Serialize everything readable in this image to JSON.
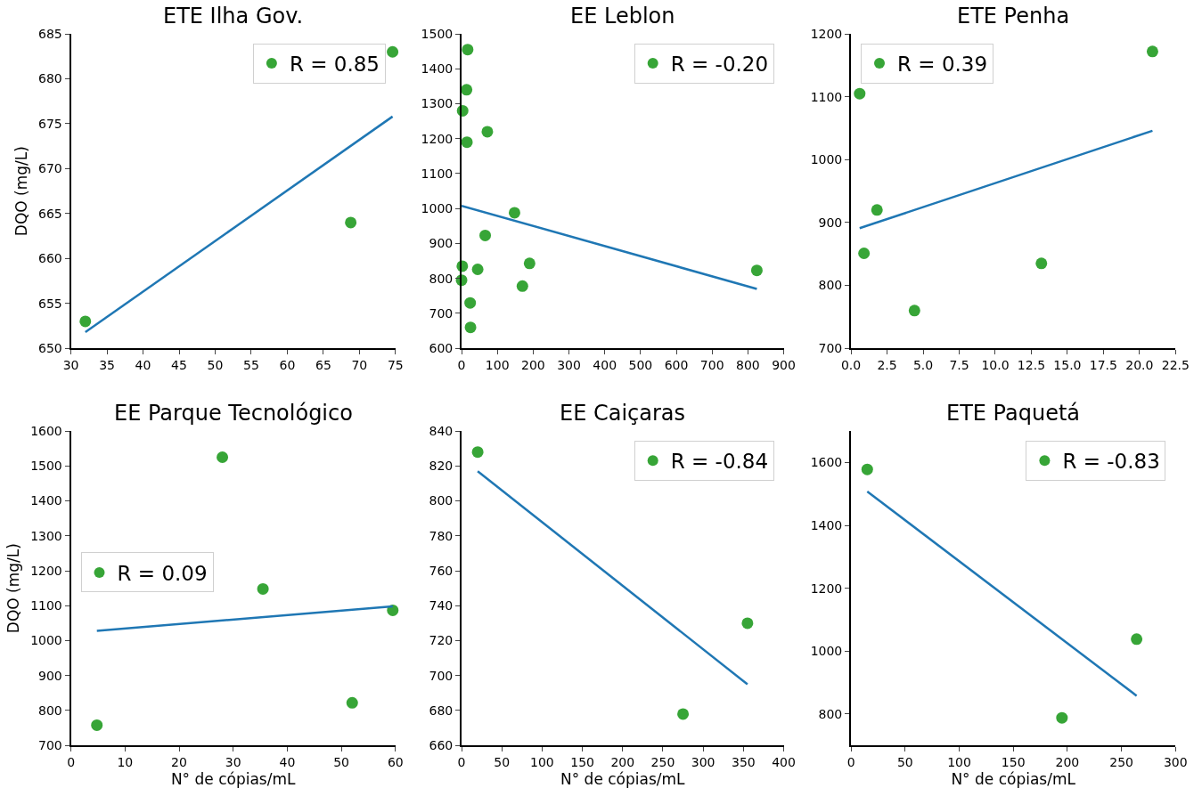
{
  "chart_data": [
    {
      "type": "scatter",
      "title": "ETE Ilha Gov.",
      "ylabel": "DQO (mg/L)",
      "xlim": [
        30,
        75
      ],
      "xticks": [
        30,
        35,
        40,
        45,
        50,
        55,
        60,
        65,
        70,
        75
      ],
      "ylim": [
        650,
        685
      ],
      "yticks": [
        650,
        655,
        660,
        665,
        670,
        675,
        680,
        685
      ],
      "grid": false,
      "legend": "top right",
      "series": [
        {
          "name": "R = 0.85",
          "color": "#2ca02c",
          "marker": "circle",
          "x": [
            32,
            68.8,
            74.6
          ],
          "values": [
            653,
            664,
            683
          ]
        },
        {
          "type": "line",
          "color": "#1f77b4",
          "marker": "none",
          "x": [
            32,
            74.6
          ],
          "values": [
            651.8,
            675.8
          ]
        }
      ]
    },
    {
      "type": "scatter",
      "title": "EE Leblon",
      "xlim": [
        0,
        900
      ],
      "xticks": [
        0,
        100,
        200,
        300,
        400,
        500,
        600,
        700,
        800,
        900
      ],
      "ylim": [
        600,
        1500
      ],
      "yticks": [
        600,
        700,
        800,
        900,
        1000,
        1100,
        1200,
        1300,
        1400,
        1500
      ],
      "grid": false,
      "legend": "top right",
      "series": [
        {
          "name": "R = -0.20",
          "color": "#2ca02c",
          "marker": "circle",
          "x": [
            17,
            14,
            3,
            15,
            72,
            148,
            66,
            2,
            45,
            190,
            0,
            170,
            24,
            25,
            825
          ],
          "values": [
            1455,
            1340,
            1280,
            1190,
            1220,
            988,
            923,
            835,
            826,
            843,
            795,
            778,
            730,
            660,
            823
          ]
        },
        {
          "type": "line",
          "color": "#1f77b4",
          "marker": "none",
          "x": [
            0,
            825
          ],
          "values": [
            1008,
            770
          ]
        }
      ]
    },
    {
      "type": "scatter",
      "title": "ETE Penha",
      "xlim": [
        0,
        22.5
      ],
      "xticks": [
        {
          "value": 0,
          "label": "0.0"
        },
        {
          "value": 2.5,
          "label": "2.5"
        },
        {
          "value": 5,
          "label": "5.0"
        },
        {
          "value": 7.5,
          "label": "7.5"
        },
        {
          "value": 10,
          "label": "10.0"
        },
        {
          "value": 12.5,
          "label": "12.5"
        },
        {
          "value": 15,
          "label": "15.0"
        },
        {
          "value": 17.5,
          "label": "17.5"
        },
        {
          "value": 20,
          "label": "20.0"
        },
        {
          "value": 22.5,
          "label": "22.5"
        }
      ],
      "ylim": [
        700,
        1200
      ],
      "yticks": [
        700,
        800,
        900,
        1000,
        1100,
        1200
      ],
      "grid": false,
      "legend": "top left",
      "series": [
        {
          "name": "R = 0.39",
          "color": "#2ca02c",
          "marker": "circle",
          "x": [
            0.6,
            1.8,
            0.9,
            4.4,
            13.2,
            20.9
          ],
          "values": [
            1105,
            920,
            851,
            760,
            835,
            1172
          ]
        },
        {
          "type": "line",
          "color": "#1f77b4",
          "marker": "none",
          "x": [
            0.6,
            20.9
          ],
          "values": [
            891,
            1046
          ]
        }
      ]
    },
    {
      "type": "scatter",
      "title": "EE Parque Tecnológico",
      "xlabel": "N° de cópias/mL",
      "ylabel": "DQO (mg/L)",
      "xlim": [
        0,
        60
      ],
      "xticks": [
        0,
        10,
        20,
        30,
        40,
        50,
        60
      ],
      "ylim": [
        700,
        1600
      ],
      "yticks": [
        700,
        800,
        900,
        1000,
        1100,
        1200,
        1300,
        1400,
        1500,
        1600
      ],
      "grid": false,
      "legend": "left",
      "series": [
        {
          "name": "R = 0.09",
          "color": "#2ca02c",
          "marker": "circle",
          "x": [
            4.8,
            28,
            35.5,
            52,
            59.5
          ],
          "values": [
            758,
            1525,
            1148,
            822,
            1087
          ]
        },
        {
          "type": "line",
          "color": "#1f77b4",
          "marker": "none",
          "x": [
            4.8,
            59.5
          ],
          "values": [
            1028,
            1098
          ]
        }
      ]
    },
    {
      "type": "scatter",
      "title": "EE Caiçaras",
      "xlabel": "N° de cópias/mL",
      "xlim": [
        0,
        400
      ],
      "xticks": [
        0,
        50,
        100,
        150,
        200,
        250,
        300,
        350,
        400
      ],
      "ylim": [
        660,
        840
      ],
      "yticks": [
        660,
        680,
        700,
        720,
        740,
        760,
        780,
        800,
        820,
        840
      ],
      "grid": false,
      "legend": "top right",
      "series": [
        {
          "name": "R = -0.84",
          "color": "#2ca02c",
          "marker": "circle",
          "x": [
            20,
            275,
            355
          ],
          "values": [
            828,
            678,
            730
          ]
        },
        {
          "type": "line",
          "color": "#1f77b4",
          "marker": "none",
          "x": [
            20,
            355
          ],
          "values": [
            817,
            695
          ]
        }
      ]
    },
    {
      "type": "scatter",
      "title": "ETE Paquetá",
      "xlabel": "N° de cópias/mL",
      "xlim": [
        0,
        300
      ],
      "xticks": [
        0,
        50,
        100,
        150,
        200,
        250,
        300
      ],
      "ylim": [
        700,
        1700
      ],
      "yticks": [
        800,
        1000,
        1200,
        1400,
        1600
      ],
      "grid": false,
      "legend": "top right",
      "series": [
        {
          "name": "R = -0.83",
          "color": "#2ca02c",
          "marker": "circle",
          "x": [
            15,
            195,
            264
          ],
          "values": [
            1578,
            788,
            1038
          ]
        },
        {
          "type": "line",
          "color": "#1f77b4",
          "marker": "none",
          "x": [
            15,
            264
          ],
          "values": [
            1508,
            858
          ]
        }
      ]
    }
  ]
}
